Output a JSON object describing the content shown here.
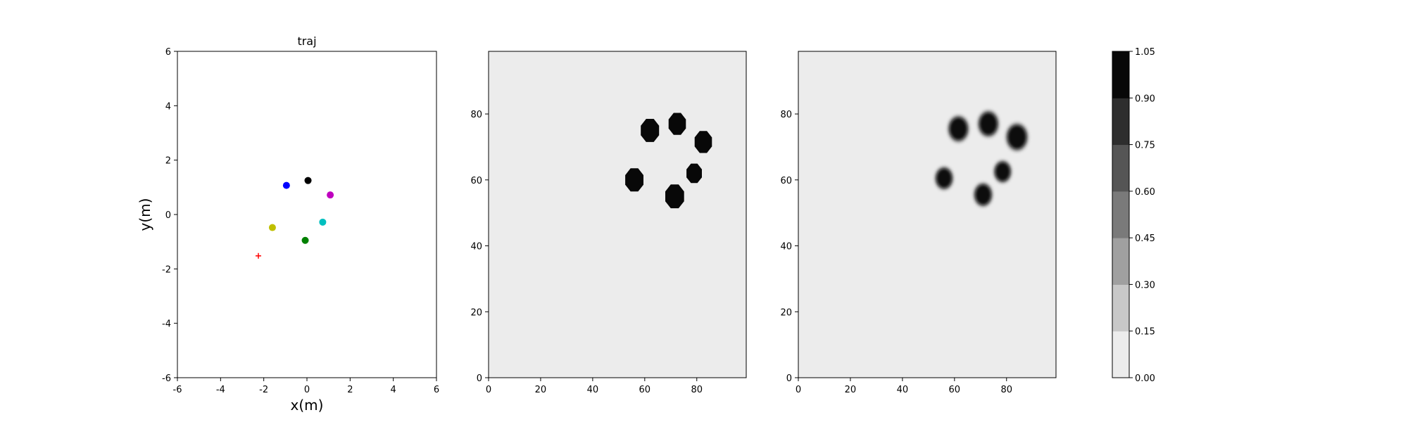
{
  "chart_data": [
    {
      "type": "scatter",
      "title": "traj",
      "xlabel": "x(m)",
      "ylabel": "y(m)",
      "xlim": [
        -6,
        6
      ],
      "ylim": [
        -6,
        6
      ],
      "xticks": [
        -6,
        -4,
        -2,
        0,
        2,
        4,
        6
      ],
      "yticks": [
        -6,
        -4,
        -2,
        0,
        2,
        4,
        6
      ],
      "grid": false,
      "points": [
        {
          "x": -0.95,
          "y": 1.07,
          "color": "#0000ff",
          "marker": "circle"
        },
        {
          "x": 0.05,
          "y": 1.25,
          "color": "#000000",
          "marker": "circle"
        },
        {
          "x": 1.08,
          "y": 0.72,
          "color": "#bf00bf",
          "marker": "circle"
        },
        {
          "x": 0.73,
          "y": -0.28,
          "color": "#00bfbf",
          "marker": "circle"
        },
        {
          "x": -0.08,
          "y": -0.95,
          "color": "#008000",
          "marker": "circle"
        },
        {
          "x": -1.6,
          "y": -0.48,
          "color": "#bfbf00",
          "marker": "circle"
        },
        {
          "x": -2.25,
          "y": -1.52,
          "color": "#ff0000",
          "marker": "plus"
        }
      ]
    },
    {
      "type": "heatmap",
      "xlim": [
        0,
        99
      ],
      "ylim": [
        0,
        99
      ],
      "xticks": [
        0,
        20,
        40,
        60,
        80
      ],
      "yticks": [
        0,
        20,
        40,
        60,
        80
      ],
      "background_color": "#ececec",
      "blob_color": "#080808",
      "blobs": [
        {
          "x": 62,
          "y": 75,
          "r": 3.8
        },
        {
          "x": 72.5,
          "y": 77,
          "r": 3.6
        },
        {
          "x": 82.5,
          "y": 71.5,
          "r": 3.6
        },
        {
          "x": 56,
          "y": 60,
          "r": 3.8
        },
        {
          "x": 79,
          "y": 62,
          "r": 3.2
        },
        {
          "x": 71.5,
          "y": 55,
          "r": 3.9
        }
      ]
    },
    {
      "type": "heatmap",
      "xlim": [
        0,
        99
      ],
      "ylim": [
        0,
        99
      ],
      "xticks": [
        0,
        20,
        40,
        60,
        80
      ],
      "yticks": [
        0,
        20,
        40,
        60,
        80
      ],
      "background_color": "#ececec",
      "blob_color": "#080808",
      "blobs": [
        {
          "x": 61.5,
          "y": 75.5,
          "r": 3.8
        },
        {
          "x": 73,
          "y": 77,
          "r": 3.8
        },
        {
          "x": 84,
          "y": 73,
          "r": 4.0
        },
        {
          "x": 56,
          "y": 60.5,
          "r": 3.3
        },
        {
          "x": 78.5,
          "y": 62.5,
          "r": 3.2
        },
        {
          "x": 71,
          "y": 55.5,
          "r": 3.4
        }
      ]
    },
    {
      "type": "colorbar",
      "levels": [
        "0.00",
        "0.15",
        "0.30",
        "0.45",
        "0.60",
        "0.75",
        "0.90",
        "1.05"
      ],
      "colors": [
        "#ececec",
        "#c8c8c8",
        "#a0a0a0",
        "#7a7a7a",
        "#555555",
        "#2e2e2e",
        "#080808"
      ]
    }
  ]
}
